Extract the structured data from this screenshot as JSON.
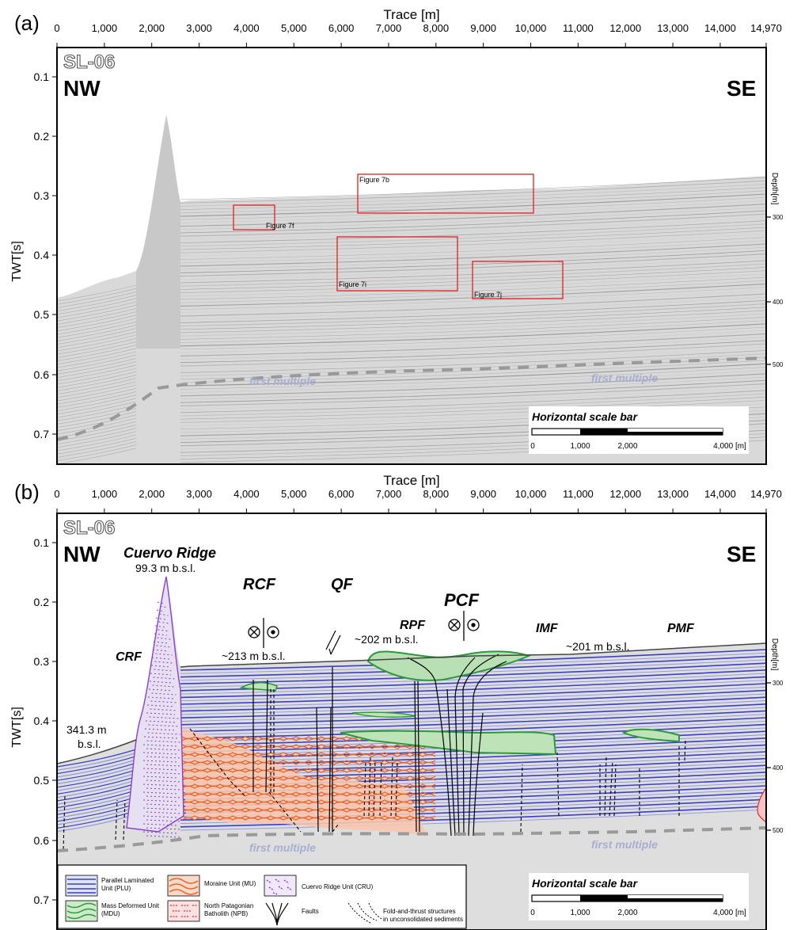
{
  "panels": [
    {
      "letter": "(a)",
      "trace_axis_title": "Trace [m]",
      "trace_ticks": [
        "0",
        "1,000",
        "2,000",
        "3,000",
        "4,000",
        "5,000",
        "6,000",
        "7,000",
        "8,000",
        "9,000",
        "10,000",
        "11,000",
        "12,000",
        "13,000",
        "14,000",
        "14,970"
      ],
      "twt_axis_title": "TWT[s]",
      "twt_ticks": [
        "0.1",
        "0.2",
        "0.3",
        "0.4",
        "0.5",
        "0.6",
        "0.7"
      ],
      "depth_axis_title": "Depth[m]",
      "depth_ticks": [
        "300",
        "400",
        "500"
      ],
      "line_name": "SL-06",
      "left_direction": "NW",
      "right_direction": "SE",
      "boxes": [
        {
          "label": "Figure 7b"
        },
        {
          "label": "Figure 7f"
        },
        {
          "label": "Figure 7i"
        },
        {
          "label": "Figure 7j"
        }
      ],
      "multiple_labels": [
        "first multiple",
        "first multiple"
      ],
      "scale_bar": {
        "title": "Horizontal scale bar",
        "ticks": [
          "0",
          "1,000",
          "2,000",
          "4,000 [m]"
        ]
      }
    },
    {
      "letter": "(b)",
      "trace_axis_title": "Trace [m]",
      "trace_ticks": [
        "0",
        "1,000",
        "2,000",
        "3,000",
        "4,000",
        "5,000",
        "6,000",
        "7,000",
        "8,000",
        "9,000",
        "10,000",
        "11,000",
        "12,000",
        "13,000",
        "14,000",
        "14,970"
      ],
      "twt_axis_title": "TWT[s]",
      "twt_ticks": [
        "0.1",
        "0.2",
        "0.3",
        "0.4",
        "0.5",
        "0.6",
        "0.7"
      ],
      "depth_axis_title": "Depth[m]",
      "depth_ticks": [
        "300",
        "400",
        "500"
      ],
      "line_name": "SL-06",
      "left_direction": "NW",
      "right_direction": "SE",
      "ridge_name": "Cuervo Ridge",
      "ridge_depth": "99.3 m b.s.l.",
      "left_depth": [
        "341.3 m",
        "b.s.l."
      ],
      "faults": [
        {
          "label": "RCF"
        },
        {
          "label": "QF"
        },
        {
          "label": "PCF"
        },
        {
          "label": "RPF"
        },
        {
          "label": "IMF"
        },
        {
          "label": "PMF"
        },
        {
          "label": "CRF"
        }
      ],
      "depth_callouts": [
        "~213 m b.s.l.",
        "~202 m b.s.l.",
        "~201 m b.s.l."
      ],
      "multiple_labels": [
        "first multiple",
        "first multiple"
      ],
      "scale_bar": {
        "title": "Horizontal scale bar",
        "ticks": [
          "0",
          "1,000",
          "2,000",
          "4,000 [m]"
        ]
      },
      "legend": [
        {
          "label": "Parallel Laminated Unit (PLU)",
          "lines": [
            "Parallel Laminated",
            "Unit (PLU)"
          ],
          "color": "#3a3fc4"
        },
        {
          "label": "Moraine Unit (MU)",
          "lines": [
            "Moraine Unit (MU)"
          ],
          "color": "#e8622a"
        },
        {
          "label": "Cuervo Ridge Unit (CRU)",
          "lines": [
            "Cuervo Ridge Unit (CRU)"
          ],
          "color": "#8a3fd0"
        },
        {
          "label": "Mass Deformed Unit (MDU)",
          "lines": [
            "Mass Deformed Unit",
            "(MDU)"
          ],
          "color": "#2a9a3a"
        },
        {
          "label": "North Patagonian Batholith (NPB)",
          "lines": [
            "North Patagonian",
            "Batholith (NPB)"
          ],
          "color": "#e03030"
        },
        {
          "label": "Faults",
          "lines": [
            "Faults"
          ],
          "color": "#000000"
        },
        {
          "label": "Fold-and-thrust structures in unconsolidated sediments",
          "lines": [
            "Fold-and-thrust structures",
            "in unconsolidated sediments"
          ],
          "color": "#000000"
        }
      ]
    }
  ]
}
